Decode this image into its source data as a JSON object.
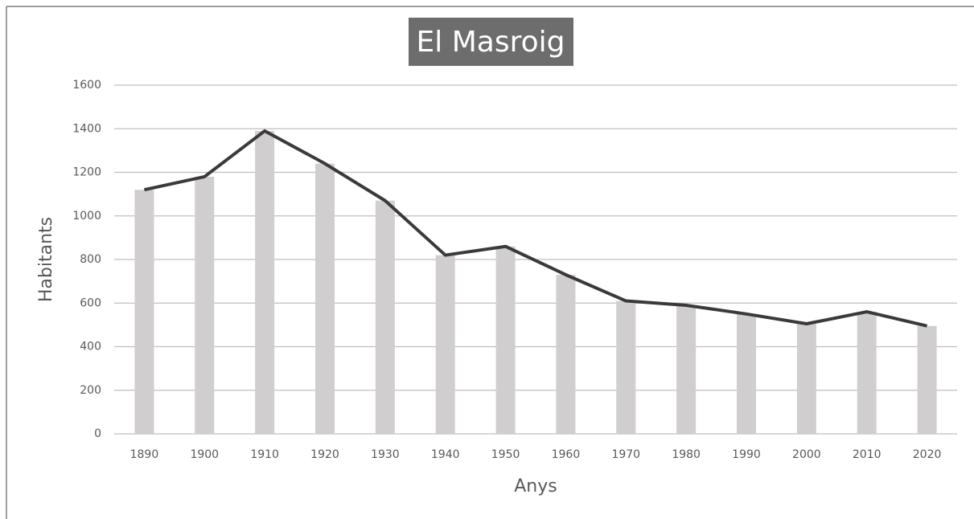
{
  "chart_data": {
    "type": "bar",
    "title": "El Masroig",
    "x_label": "Anys",
    "y_label": "Habitants",
    "categories": [
      "1890",
      "1900",
      "1910",
      "1920",
      "1930",
      "1940",
      "1950",
      "1960",
      "1970",
      "1980",
      "1990",
      "2000",
      "2010",
      "2020"
    ],
    "values": [
      1120,
      1180,
      1390,
      1240,
      1070,
      820,
      860,
      730,
      610,
      590,
      550,
      505,
      560,
      495
    ],
    "color": "#d0cece",
    "line_color": "#3a3a3a",
    "ylim": [
      0,
      1600
    ],
    "yticks": [
      0,
      200,
      400,
      600,
      800,
      1000,
      1200,
      1400,
      1600
    ],
    "grid": true
  }
}
